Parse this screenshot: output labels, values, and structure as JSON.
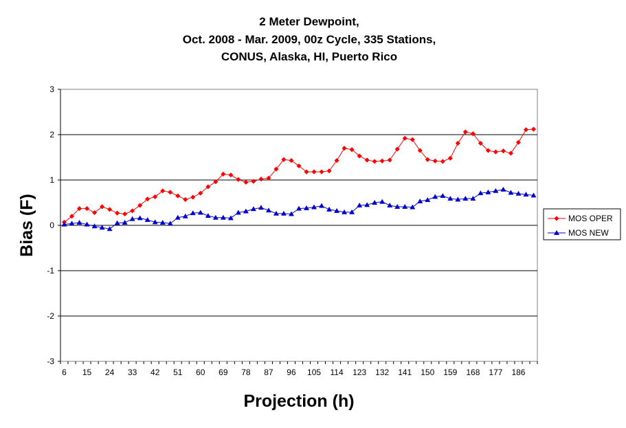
{
  "chart_data": {
    "type": "line",
    "title_lines": [
      "2 Meter Dewpoint,",
      "Oct. 2008 - Mar. 2009, 00z Cycle, 335 Stations,",
      "CONUS, Alaska, HI, Puerto Rico"
    ],
    "xlabel": "Projection (h)",
    "ylabel": "Bias (F)",
    "ylim": [
      -3,
      3
    ],
    "yticks": [
      "3",
      "2",
      "1",
      "0",
      "-1",
      "-2",
      "-3"
    ],
    "x_tick_labels": [
      "6",
      "15",
      "24",
      "33",
      "42",
      "51",
      "60",
      "69",
      "78",
      "87",
      "96",
      "105",
      "114",
      "123",
      "132",
      "141",
      "150",
      "159",
      "168",
      "177",
      "186"
    ],
    "x": [
      6,
      9,
      12,
      15,
      18,
      21,
      24,
      27,
      30,
      33,
      36,
      39,
      42,
      45,
      48,
      51,
      54,
      57,
      60,
      63,
      66,
      69,
      72,
      75,
      78,
      81,
      84,
      87,
      90,
      93,
      96,
      99,
      102,
      105,
      108,
      111,
      114,
      117,
      120,
      123,
      126,
      129,
      132,
      135,
      138,
      141,
      144,
      147,
      150,
      153,
      156,
      159,
      162,
      165,
      168,
      171,
      174,
      177,
      180,
      183,
      186,
      189,
      192
    ],
    "grid": true,
    "legend_position": "right",
    "series": [
      {
        "name": "MOS OPER",
        "color": "#ff0000",
        "marker": "diamond",
        "values": [
          0.07,
          0.2,
          0.37,
          0.37,
          0.28,
          0.41,
          0.35,
          0.27,
          0.25,
          0.32,
          0.44,
          0.58,
          0.63,
          0.76,
          0.73,
          0.65,
          0.57,
          0.62,
          0.71,
          0.85,
          0.96,
          1.13,
          1.11,
          1.01,
          0.95,
          0.97,
          1.02,
          1.04,
          1.24,
          1.45,
          1.43,
          1.31,
          1.18,
          1.18,
          1.18,
          1.2,
          1.43,
          1.7,
          1.67,
          1.53,
          1.44,
          1.41,
          1.42,
          1.44,
          1.68,
          1.92,
          1.89,
          1.65,
          1.45,
          1.42,
          1.41,
          1.48,
          1.81,
          2.06,
          2.02,
          1.81,
          1.65,
          1.62,
          1.64,
          1.59,
          1.83,
          2.11,
          2.12
        ]
      },
      {
        "name": "MOS NEW",
        "color": "#0000cc",
        "marker": "triangle",
        "values": [
          0.02,
          0.04,
          0.06,
          0.02,
          -0.02,
          -0.05,
          -0.08,
          0.05,
          0.06,
          0.14,
          0.16,
          0.12,
          0.07,
          0.06,
          0.04,
          0.17,
          0.2,
          0.27,
          0.28,
          0.21,
          0.17,
          0.17,
          0.16,
          0.28,
          0.31,
          0.36,
          0.39,
          0.33,
          0.26,
          0.26,
          0.25,
          0.37,
          0.38,
          0.4,
          0.43,
          0.35,
          0.32,
          0.29,
          0.29,
          0.44,
          0.45,
          0.5,
          0.52,
          0.44,
          0.41,
          0.41,
          0.4,
          0.53,
          0.56,
          0.63,
          0.65,
          0.59,
          0.57,
          0.59,
          0.59,
          0.71,
          0.73,
          0.76,
          0.79,
          0.72,
          0.7,
          0.68,
          0.66
        ]
      }
    ]
  }
}
